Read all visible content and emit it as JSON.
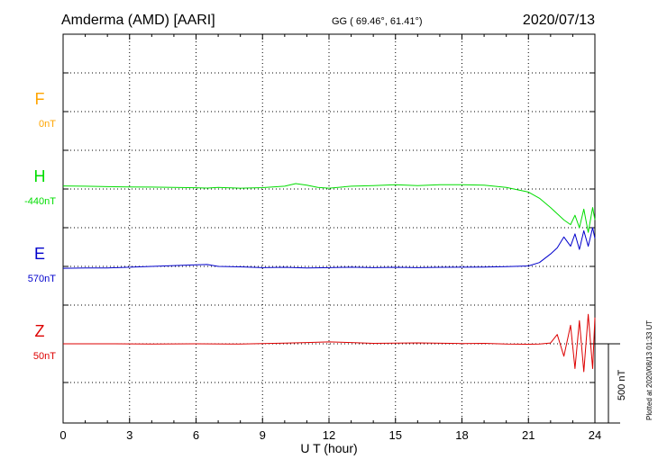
{
  "header": {
    "station": "Amderma (AMD)  [AARI]",
    "coords": "GG ( 69.46°,  61.41°)",
    "date": "2020/07/13"
  },
  "footer": {
    "plotted": "Plotted at 2020/08/13 01:33 UT"
  },
  "scale_bar": {
    "label": "500 nT",
    "value_nT": 500
  },
  "colors": {
    "F": "#ffa500",
    "H": "#00dd00",
    "E": "#0000cc",
    "Z": "#dd0000",
    "axis": "#000000",
    "grid": "#000000"
  },
  "chart_data": {
    "type": "line",
    "xlabel": "U T (hour)",
    "xlim": [
      0,
      24
    ],
    "xticks": [
      0,
      3,
      6,
      9,
      12,
      15,
      18,
      21,
      24
    ],
    "xtick_labels": [
      "0",
      "3",
      "6",
      "9",
      "12",
      "15",
      "18",
      "21",
      "24"
    ],
    "grid": true,
    "series": [
      {
        "name": "F",
        "baseline_label": "0nT",
        "x": [],
        "values": []
      },
      {
        "name": "H",
        "baseline_label": "-440nT",
        "x": [
          0,
          1,
          2,
          3,
          4,
          5,
          6,
          6.5,
          7,
          8,
          9,
          10,
          10.5,
          11,
          11.5,
          12,
          13,
          14,
          15,
          16,
          17,
          18,
          19,
          20,
          21,
          21.5,
          22,
          22.3,
          22.6,
          22.9,
          23.1,
          23.3,
          23.5,
          23.7,
          23.9,
          24
        ],
        "values": [
          20,
          18,
          15,
          13,
          12,
          10,
          8,
          6,
          10,
          5,
          9,
          18,
          35,
          25,
          10,
          5,
          18,
          22,
          28,
          22,
          28,
          28,
          25,
          10,
          -20,
          -60,
          -120,
          -160,
          -200,
          -230,
          -170,
          -250,
          -130,
          -280,
          -120,
          -200
        ]
      },
      {
        "name": "E",
        "baseline_label": "570nT",
        "x": [
          0,
          1,
          2,
          3,
          4,
          5,
          6,
          6.5,
          7,
          8,
          9,
          10,
          11,
          12,
          13,
          14,
          15,
          16,
          17,
          18,
          19,
          20,
          21,
          21.5,
          22,
          22.3,
          22.6,
          22.9,
          23.1,
          23.3,
          23.5,
          23.7,
          23.9,
          24
        ],
        "values": [
          -12,
          -10,
          -10,
          -5,
          0,
          5,
          10,
          12,
          0,
          -3,
          -8,
          -6,
          -10,
          -8,
          -5,
          -8,
          -6,
          -8,
          -6,
          -5,
          -4,
          -2,
          3,
          25,
          80,
          120,
          190,
          130,
          210,
          110,
          230,
          130,
          250,
          180
        ]
      },
      {
        "name": "Z",
        "baseline_label": "50nT",
        "x": [
          0,
          2,
          4,
          6,
          8,
          10,
          11,
          12,
          13,
          14,
          16,
          18,
          19,
          20,
          21,
          21.5,
          22,
          22.3,
          22.6,
          22.9,
          23.1,
          23.3,
          23.5,
          23.7,
          23.9,
          24
        ],
        "values": [
          0,
          0,
          -2,
          0,
          -2,
          4,
          8,
          12,
          8,
          3,
          6,
          2,
          3,
          -2,
          -3,
          -2,
          5,
          60,
          -80,
          120,
          -160,
          150,
          -180,
          190,
          -160,
          170
        ]
      }
    ]
  }
}
